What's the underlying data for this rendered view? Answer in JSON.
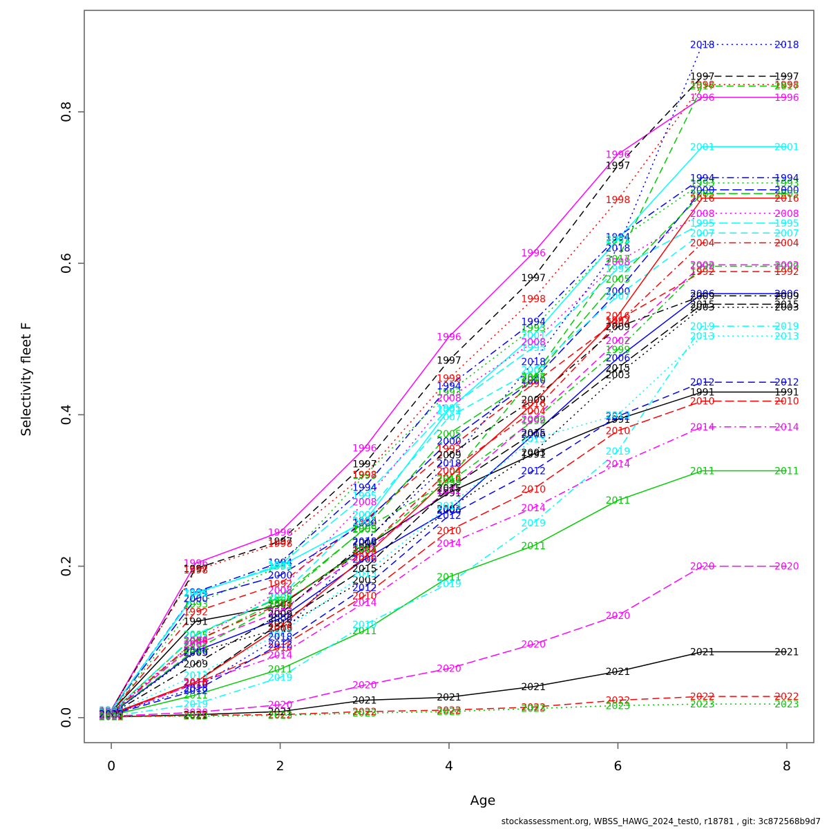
{
  "page": {
    "background": "#FFFFFF"
  },
  "axes": {
    "xlabel": "Age",
    "ylabel": "Selectivity fleet F",
    "x_ticks": [
      {
        "v": 0,
        "label": "0"
      },
      {
        "v": 2,
        "label": "2"
      },
      {
        "v": 4,
        "label": "4"
      },
      {
        "v": 6,
        "label": "6"
      },
      {
        "v": 8,
        "label": "8"
      }
    ],
    "y_ticks": [
      {
        "v": 0.0,
        "label": "0.0"
      },
      {
        "v": 0.2,
        "label": "0.2"
      },
      {
        "v": 0.4,
        "label": "0.4"
      },
      {
        "v": 0.6,
        "label": "0.6"
      },
      {
        "v": 0.8,
        "label": "0.8"
      }
    ]
  },
  "footer": {
    "text": "stockassessment.org, WBSS_HAWG_2024_test0, r18781 , git: 3c872568b9d7"
  },
  "chart_data": {
    "type": "line",
    "title": "",
    "xlabel": "Age",
    "ylabel": "Selectivity fleet F",
    "x": [
      0,
      1,
      2,
      3,
      4,
      5,
      6,
      7,
      8
    ],
    "xlim": [
      -0.32,
      8.32
    ],
    "ylim": [
      -0.033,
      0.934
    ],
    "grid": false,
    "legend_position": "none",
    "point_label_style": "each data point is labeled with the series year in the series color",
    "palette_note": "R default palette cycling black/red/green/blue/cyan/magenta with line types solid/dashed/dotted/dotdash/longdash",
    "series": [
      {
        "year": "1991",
        "color": "#000000",
        "dash": "solid",
        "values": [
          0.008,
          0.127,
          0.148,
          0.225,
          0.297,
          0.348,
          0.394,
          0.43,
          0.43
        ]
      },
      {
        "year": "1992",
        "color": "#FF0000",
        "dash": "dashed",
        "values": [
          0.008,
          0.14,
          0.177,
          0.26,
          0.355,
          0.441,
          0.525,
          0.589,
          0.589
        ]
      },
      {
        "year": "1993",
        "color": "#00CC00",
        "dash": "dotted",
        "values": [
          0.008,
          0.15,
          0.2,
          0.32,
          0.43,
          0.515,
          0.63,
          0.706,
          0.706
        ]
      },
      {
        "year": "1994",
        "color": "#0000FF",
        "dash": "dotdash",
        "values": [
          0.01,
          0.166,
          0.205,
          0.304,
          0.438,
          0.523,
          0.635,
          0.713,
          0.713
        ]
      },
      {
        "year": "1995",
        "color": "#00FFFF",
        "dash": "longdash",
        "values": [
          0.01,
          0.164,
          0.202,
          0.293,
          0.409,
          0.489,
          0.593,
          0.653,
          0.653
        ]
      },
      {
        "year": "1996",
        "color": "#FF00FF",
        "dash": "solid",
        "values": [
          0.01,
          0.204,
          0.245,
          0.356,
          0.503,
          0.614,
          0.744,
          0.819,
          0.819
        ]
      },
      {
        "year": "1997",
        "color": "#000000",
        "dash": "dashed",
        "values": [
          0.01,
          0.197,
          0.233,
          0.335,
          0.472,
          0.581,
          0.729,
          0.847,
          0.847
        ]
      },
      {
        "year": "1998",
        "color": "#FF0000",
        "dash": "dotted",
        "values": [
          0.01,
          0.195,
          0.23,
          0.321,
          0.448,
          0.553,
          0.684,
          0.836,
          0.836
        ]
      },
      {
        "year": "1999",
        "color": "#00CC00",
        "dash": "dotdash",
        "values": [
          0.006,
          0.1,
          0.155,
          0.25,
          0.311,
          0.392,
          0.486,
          0.596,
          0.596
        ]
      },
      {
        "year": "2000",
        "color": "#0000FF",
        "dash": "longdash",
        "values": [
          0.01,
          0.157,
          0.188,
          0.257,
          0.365,
          0.446,
          0.563,
          0.697,
          0.697
        ]
      },
      {
        "year": "2001",
        "color": "#00FFFF",
        "dash": "solid",
        "values": [
          0.01,
          0.165,
          0.2,
          0.259,
          0.407,
          0.505,
          0.632,
          0.754,
          0.754
        ]
      },
      {
        "year": "2002",
        "color": "#FF00FF",
        "dash": "dashed",
        "values": [
          0.006,
          0.097,
          0.14,
          0.22,
          0.3,
          0.394,
          0.498,
          0.598,
          0.598
        ]
      },
      {
        "year": "2003",
        "color": "#000000",
        "dash": "dotted",
        "values": [
          0.005,
          0.086,
          0.118,
          0.182,
          0.276,
          0.35,
          0.453,
          0.542,
          0.542
        ]
      },
      {
        "year": "2004",
        "color": "#FF0000",
        "dash": "dotdash",
        "values": [
          0.006,
          0.102,
          0.15,
          0.221,
          0.326,
          0.405,
          0.521,
          0.627,
          0.627
        ]
      },
      {
        "year": "2005",
        "color": "#00CC00",
        "dash": "longdash",
        "values": [
          0.007,
          0.109,
          0.159,
          0.249,
          0.375,
          0.448,
          0.579,
          0.692,
          0.692
        ]
      },
      {
        "year": "2006",
        "color": "#0000FF",
        "dash": "solid",
        "values": [
          0.005,
          0.088,
          0.131,
          0.209,
          0.274,
          0.374,
          0.475,
          0.56,
          0.56
        ]
      },
      {
        "year": "2007",
        "color": "#00FFFF",
        "dash": "dashed",
        "values": [
          0.007,
          0.11,
          0.16,
          0.268,
          0.397,
          0.459,
          0.557,
          0.64,
          0.64
        ]
      },
      {
        "year": "2008",
        "color": "#FF00FF",
        "dash": "dotted",
        "values": [
          0.008,
          0.102,
          0.168,
          0.285,
          0.422,
          0.496,
          0.602,
          0.666,
          0.666
        ]
      },
      {
        "year": "2009",
        "color": "#000000",
        "dash": "dotdash",
        "values": [
          0.005,
          0.071,
          0.137,
          0.231,
          0.347,
          0.42,
          0.516,
          0.557,
          0.557
        ]
      },
      {
        "year": "2010",
        "color": "#FF0000",
        "dash": "longdash",
        "values": [
          0.004,
          0.045,
          0.093,
          0.161,
          0.247,
          0.302,
          0.379,
          0.418,
          0.418
        ]
      },
      {
        "year": "2011",
        "color": "#00CC00",
        "dash": "solid",
        "values": [
          0.003,
          0.03,
          0.064,
          0.115,
          0.186,
          0.227,
          0.287,
          0.326,
          0.326
        ]
      },
      {
        "year": "2012",
        "color": "#0000FF",
        "dash": "dashed",
        "values": [
          0.004,
          0.036,
          0.097,
          0.172,
          0.267,
          0.326,
          0.398,
          0.443,
          0.443
        ]
      },
      {
        "year": "2013",
        "color": "#00FFFF",
        "dash": "dotted",
        "values": [
          0.005,
          0.056,
          0.111,
          0.19,
          0.28,
          0.368,
          0.4,
          0.504,
          0.504
        ]
      },
      {
        "year": "2014",
        "color": "#FF00FF",
        "dash": "dotdash",
        "values": [
          0.004,
          0.045,
          0.083,
          0.152,
          0.23,
          0.277,
          0.335,
          0.384,
          0.384
        ]
      },
      {
        "year": "2015",
        "color": "#000000",
        "dash": "longdash",
        "values": [
          0.005,
          0.047,
          0.125,
          0.197,
          0.303,
          0.376,
          0.462,
          0.546,
          0.546
        ]
      },
      {
        "year": "2016",
        "color": "#FF0000",
        "dash": "solid",
        "values": [
          0.005,
          0.047,
          0.12,
          0.212,
          0.317,
          0.415,
          0.531,
          0.686,
          0.686
        ]
      },
      {
        "year": "2017",
        "color": "#00CC00",
        "dash": "dashed",
        "values": [
          0.006,
          0.09,
          0.15,
          0.223,
          0.315,
          0.45,
          0.606,
          0.834,
          0.834
        ]
      },
      {
        "year": "2018",
        "color": "#0000FF",
        "dash": "dotted",
        "values": [
          0.005,
          0.039,
          0.107,
          0.233,
          0.336,
          0.47,
          0.62,
          0.889,
          0.889
        ]
      },
      {
        "year": "2019",
        "color": "#00FFFF",
        "dash": "dotdash",
        "values": [
          0.002,
          0.018,
          0.053,
          0.123,
          0.177,
          0.257,
          0.352,
          0.517,
          0.517
        ]
      },
      {
        "year": "2020",
        "color": "#FF00FF",
        "dash": "longdash",
        "values": [
          0.002,
          0.007,
          0.017,
          0.043,
          0.065,
          0.097,
          0.135,
          0.2,
          0.2
        ]
      },
      {
        "year": "2021",
        "color": "#000000",
        "dash": "solid",
        "values": [
          0.001,
          0.004,
          0.008,
          0.023,
          0.027,
          0.041,
          0.061,
          0.087,
          0.087
        ]
      },
      {
        "year": "2022",
        "color": "#FF0000",
        "dash": "dashed",
        "values": [
          0.001,
          0.003,
          0.004,
          0.008,
          0.01,
          0.014,
          0.023,
          0.028,
          0.028
        ]
      },
      {
        "year": "2023",
        "color": "#00CC00",
        "dash": "dotted",
        "values": [
          0.001,
          0.002,
          0.003,
          0.006,
          0.008,
          0.012,
          0.016,
          0.018,
          0.018
        ]
      }
    ]
  }
}
